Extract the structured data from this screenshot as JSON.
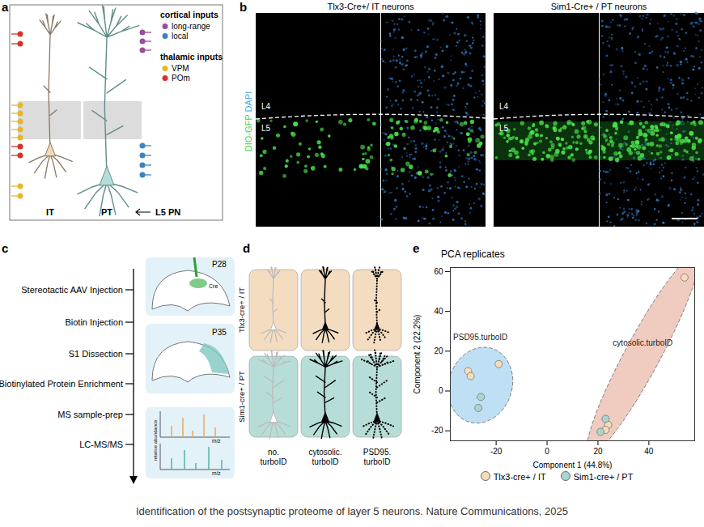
{
  "caption": "Identification of the postsynaptic proteome of layer 5 neurons. Nature Communications, 2025",
  "panel_a": {
    "letter": "a",
    "cortical_title": "cortical inputs",
    "cortical": [
      {
        "label": "long-range",
        "color": "#9c4d99"
      },
      {
        "label": "local",
        "color": "#3b84bd"
      }
    ],
    "thalamic_title": "thalamic inputs",
    "thalamic": [
      {
        "label": "VPM",
        "color": "#e8b725"
      },
      {
        "label": "POm",
        "color": "#d6322e"
      }
    ],
    "neurons": [
      "IT",
      "PT"
    ],
    "group_label": "L5 PN"
  },
  "panel_b": {
    "letter": "b",
    "images": [
      "Tlx3-Cre+/ IT neurons",
      "Sim1-Cre+ / PT neurons"
    ],
    "stain_labels": [
      {
        "label": "DIO-GFP",
        "color": "#3fd14a"
      },
      {
        "label": "DAPI",
        "color": "#4aa8e8"
      }
    ],
    "layers": [
      "L4",
      "L5"
    ]
  },
  "panel_c": {
    "letter": "c",
    "steps": [
      "Stereotactic AAV Injection",
      "Biotin Injection",
      "S1 Dissection",
      "Biotinylated Protein Enrichment",
      "MS sample-prep",
      "LC-MS/MS"
    ],
    "ages": [
      "P28",
      "P35"
    ],
    "cre_label": "Cre",
    "ms_y_label": "relative abundance",
    "ms_x_label": "m/z"
  },
  "panel_d": {
    "letter": "d",
    "rows": [
      {
        "label": "Tlx3-cre+ / IT",
        "color": "#f3dcc0"
      },
      {
        "label": "Sim1-cre+ / PT",
        "color": "#b7ddd8"
      }
    ],
    "columns": [
      "no. turboID",
      "cytosolic. turboID",
      "PSD95. turboID"
    ]
  },
  "chart_data": {
    "type": "scatter",
    "letter": "e",
    "title": "PCA replicates",
    "x_label": "Component 1 (44.8%)",
    "y_label": "Component 2 (22.2%)",
    "xlim": [
      -38,
      58
    ],
    "ylim": [
      -25,
      62
    ],
    "xticks": [
      -20,
      0,
      20,
      40
    ],
    "yticks": [
      -20,
      0,
      20,
      40,
      60
    ],
    "grid": false,
    "legend": "bottom",
    "marker": "circle",
    "groups": [
      {
        "name": "PSD95.turboID",
        "color": "#a9d4f2"
      },
      {
        "name": "cytosolic.turboID",
        "color": "#e9b9ab"
      }
    ],
    "series": [
      {
        "name": "Tlx3-cre+ / IT",
        "color": "#f6dcb8",
        "x": [
          -31,
          -30,
          -19,
          54,
          24,
          23
        ],
        "y": [
          10,
          7.5,
          13.5,
          57,
          -17,
          -19.5
        ],
        "group": [
          "PSD95.turboID",
          "PSD95.turboID",
          "PSD95.turboID",
          "cytosolic.turboID",
          "cytosolic.turboID",
          "cytosolic.turboID"
        ]
      },
      {
        "name": "Sim1-cre+ / PT",
        "color": "#a9d6cf",
        "x": [
          -26,
          -27,
          23,
          21
        ],
        "y": [
          -3,
          -8.5,
          -14,
          -20.5
        ],
        "group": [
          "PSD95.turboID",
          "PSD95.turboID",
          "cytosolic.turboID",
          "cytosolic.turboID"
        ]
      }
    ]
  }
}
